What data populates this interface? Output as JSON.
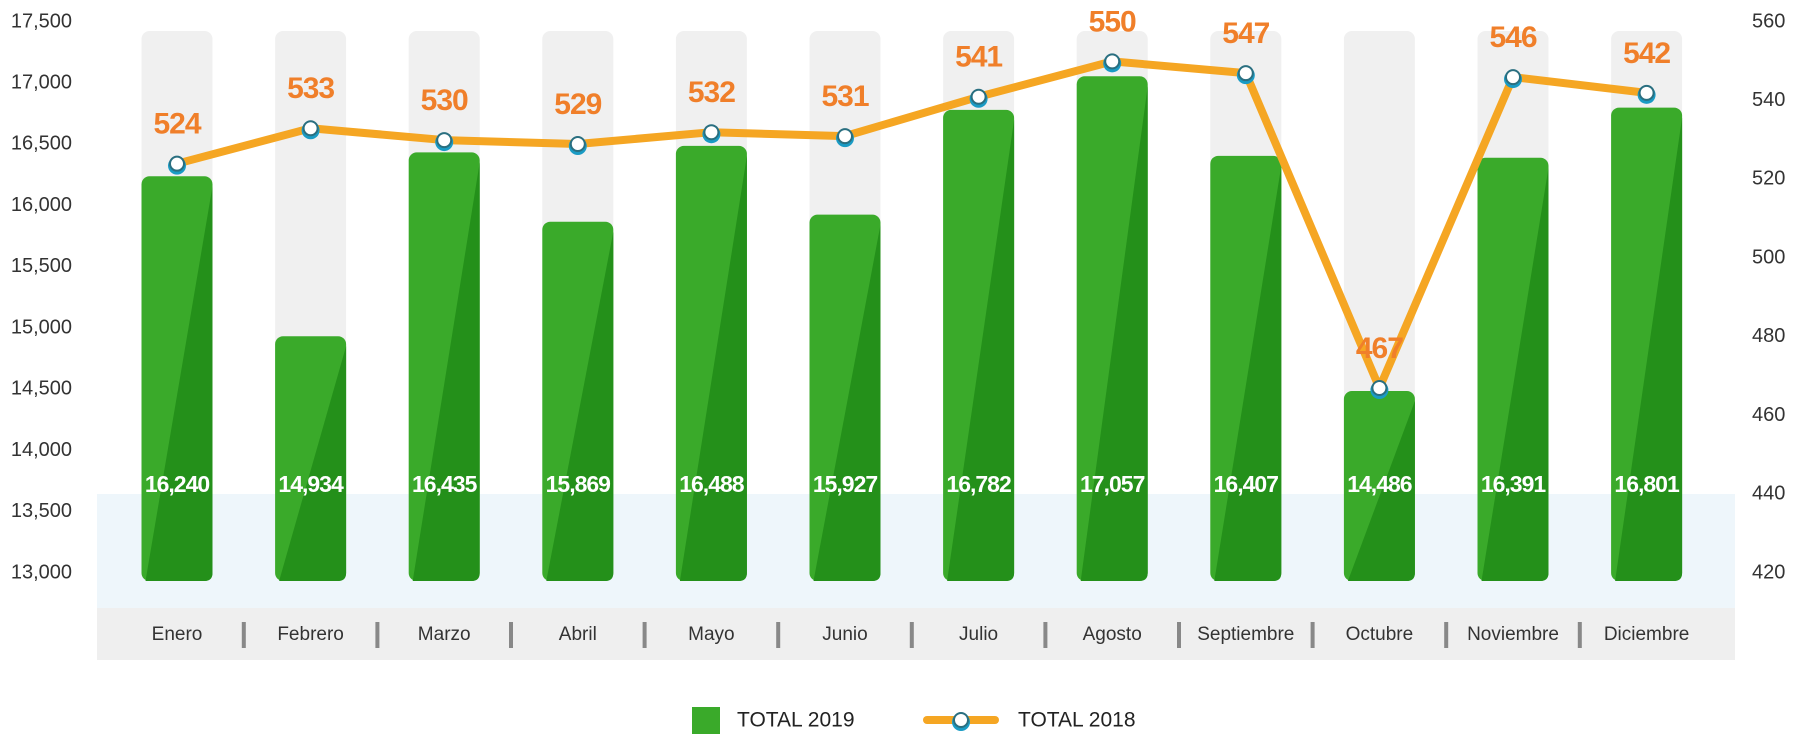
{
  "chart_data": {
    "type": "bar-line",
    "categories": [
      "Enero",
      "Febrero",
      "Marzo",
      "Abril",
      "Mayo",
      "Junio",
      "Julio",
      "Agosto",
      "Septiembre",
      "Octubre",
      "Noviembre",
      "Diciembre"
    ],
    "series": [
      {
        "name": "TOTAL 2019",
        "type": "bar",
        "color": "#3aaa2a",
        "values": [
          16240,
          14934,
          16435,
          15869,
          16488,
          15927,
          16782,
          17057,
          16407,
          14486,
          16391,
          16801
        ],
        "value_labels": [
          "16,240",
          "14,934",
          "16,435",
          "15,869",
          "16,488",
          "15,927",
          "16,782",
          "17,057",
          "16,407",
          "14,486",
          "16,391",
          "16,801"
        ]
      },
      {
        "name": "TOTAL 2018",
        "type": "line",
        "axis": "y2",
        "color": "#f5a623",
        "values": [
          524,
          533,
          530,
          529,
          532,
          531,
          541,
          550,
          547,
          467,
          546,
          542
        ]
      }
    ],
    "ylim": [
      13000,
      17500
    ],
    "yticks": [
      {
        "value": 13000,
        "label": "13,000"
      },
      {
        "value": 13500,
        "label": "13,500"
      },
      {
        "value": 14000,
        "label": "14,000"
      },
      {
        "value": 14500,
        "label": "14,500"
      },
      {
        "value": 15000,
        "label": "15,000"
      },
      {
        "value": 15500,
        "label": "15,500"
      },
      {
        "value": 16000,
        "label": "16,000"
      },
      {
        "value": 16500,
        "label": "16,500"
      },
      {
        "value": 17000,
        "label": "17,000"
      },
      {
        "value": 17500,
        "label": "17,500"
      }
    ],
    "y2lim": [
      420,
      560
    ],
    "y2ticks": [
      420,
      440,
      460,
      480,
      500,
      520,
      540,
      560
    ]
  }
}
